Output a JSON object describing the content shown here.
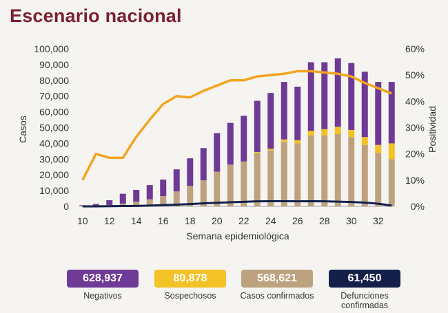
{
  "title": "Escenario nacional",
  "colors": {
    "negativos": "#6e3a95",
    "sospechosos": "#f2c227",
    "confirmados": "#bda27f",
    "defunciones": "#14204a",
    "positividad": "#f1a51f",
    "title": "#7a2131"
  },
  "legend": [
    {
      "value": "628,937",
      "label": "Negativos",
      "color": "#6e3a95"
    },
    {
      "value": "80,878",
      "label": "Sospechosos",
      "color": "#f2c227"
    },
    {
      "value": "568,621",
      "label": "Casos confirmados",
      "color": "#bda27f"
    },
    {
      "value": "61,450",
      "label": "Defunciones confirmadas",
      "color": "#14204a"
    }
  ],
  "chart_data": {
    "type": "bar",
    "stacked": true,
    "xlabel": "Semana epidemiológica",
    "ylabel": "Casos",
    "y2label": "Positividad",
    "ylim": [
      0,
      100000
    ],
    "y2lim": [
      0,
      60
    ],
    "yticks": [
      "0",
      "10,000",
      "20,000",
      "30,000",
      "40,000",
      "50,000",
      "60,000",
      "70,000",
      "80,000",
      "90,000",
      "100,000"
    ],
    "y2ticks": [
      "0%",
      "10%",
      "20%",
      "30%",
      "40%",
      "50%",
      "60%"
    ],
    "x": [
      10,
      11,
      12,
      13,
      14,
      15,
      16,
      17,
      18,
      19,
      20,
      21,
      22,
      23,
      24,
      25,
      26,
      27,
      28,
      29,
      30,
      31,
      32,
      33
    ],
    "xticks": [
      10,
      12,
      14,
      16,
      18,
      20,
      22,
      24,
      26,
      28,
      30,
      32
    ],
    "series": [
      {
        "name": "Casos confirmados",
        "values": [
          100,
          400,
          900,
          1800,
          3000,
          4500,
          6500,
          9500,
          13000,
          16500,
          22000,
          26500,
          28500,
          34000,
          35500,
          41000,
          40000,
          45000,
          45000,
          46000,
          44000,
          39000,
          34000,
          30000
        ]
      },
      {
        "name": "Sospechosos",
        "values": [
          0,
          0,
          0,
          0,
          0,
          0,
          0,
          0,
          0,
          0,
          0,
          0,
          0,
          500,
          1000,
          1500,
          2000,
          3000,
          4000,
          4500,
          4500,
          5000,
          5000,
          10000
        ]
      },
      {
        "name": "Negativos",
        "values": [
          600,
          1100,
          3000,
          6200,
          7500,
          9000,
          10500,
          14000,
          17500,
          20500,
          24500,
          26500,
          29000,
          32500,
          35500,
          36500,
          34000,
          43500,
          42500,
          43500,
          42500,
          41500,
          40000,
          39000
        ]
      },
      {
        "name": "Defunciones confirmadas",
        "values": [
          0,
          0,
          100,
          200,
          300,
          500,
          800,
          1100,
          1500,
          1900,
          2300,
          2600,
          2900,
          3200,
          3300,
          3300,
          3200,
          3300,
          3200,
          3000,
          2800,
          2400,
          1700,
          500
        ]
      },
      {
        "name": "Positividad",
        "values": [
          10,
          20,
          18.5,
          18.5,
          26.5,
          33,
          39,
          42,
          41.5,
          44,
          46,
          48,
          48,
          49.5,
          50,
          50.5,
          51.5,
          51.5,
          51,
          50.5,
          49.5,
          47,
          45,
          43
        ]
      }
    ]
  }
}
